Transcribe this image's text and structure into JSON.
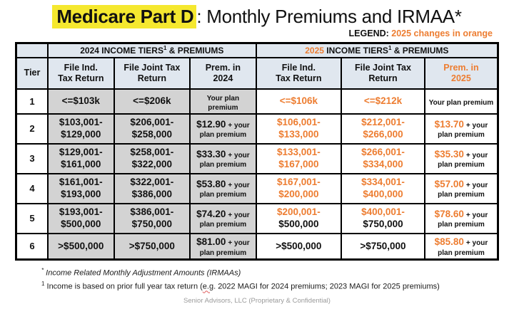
{
  "page": {
    "title": {
      "highlight": "Medicare Part D",
      "rest": ": Monthly Premiums and IRMAA*"
    },
    "legend": {
      "label": "LEGEND:",
      "text": "2025 changes in orange"
    },
    "footnotes": {
      "fn1_sup": "*",
      "fn1_text": " Income Related Monthly Adjustment Amounts (IRMAAs)",
      "fn2_sup": "1",
      "fn2_pre": " Income is based on prior full year tax return (",
      "fn2_squiggle": "e.g",
      "fn2_post": ". 2022 MAGI for 2024 premiums; 2023 MAGI for 2025 premiums)"
    },
    "footer": "Senior Advisors, LLC (Proprietary & Confidential)"
  },
  "colors": {
    "orange": "#ED7D31",
    "highlight_yellow": "#F5E82F",
    "header_bg": "#E0E7EF",
    "gray_cell": "#D3D3D3"
  },
  "table": {
    "group_2024": {
      "year": "2024",
      "mid": " INCOME TIERS",
      "sup": "1",
      "tail": " & PREMIUMS"
    },
    "group_2025": {
      "year": "2025",
      "mid": " INCOME TIERS",
      "sup": "1",
      "tail": " & PREMIUMS"
    },
    "columns": {
      "tier": "Tier",
      "ind_2024": {
        "line1": "File Ind.",
        "line2": "Tax Return"
      },
      "joint_2024": {
        "line1": "File Joint Tax",
        "line2": "Return"
      },
      "prem_2024": {
        "line1": "Prem. in",
        "line2": "2024"
      },
      "ind_2025": {
        "line1": "File Ind.",
        "line2": "Tax Return"
      },
      "joint_2025": {
        "line1": "File Joint Tax",
        "line2": "Return"
      },
      "prem_2025": {
        "line1": "Prem. in",
        "line2": "2025"
      }
    },
    "rows": [
      {
        "tier": "1",
        "ind_2024": [
          {
            "text": "<=$103k",
            "orange": false
          }
        ],
        "joint_2024": [
          {
            "text": "<=$206k",
            "orange": false
          }
        ],
        "prem_2024": {
          "amount": "",
          "amount_orange": false,
          "tail1": "Your plan",
          "tail2": "premium"
        },
        "ind_2025": [
          {
            "text": "<=$106k",
            "orange": true
          }
        ],
        "joint_2025": [
          {
            "text": "<=$212k",
            "orange": true
          }
        ],
        "prem_2025": {
          "amount": "",
          "amount_orange": false,
          "tail1": "Your plan premium",
          "tail2": ""
        }
      },
      {
        "tier": "2",
        "ind_2024": [
          {
            "text": "$103,001-",
            "orange": false
          },
          {
            "text": "$129,000",
            "orange": false
          }
        ],
        "joint_2024": [
          {
            "text": "$206,001-",
            "orange": false
          },
          {
            "text": "$258,000",
            "orange": false
          }
        ],
        "prem_2024": {
          "amount": "$12.90",
          "amount_orange": false,
          "tail1": "+ your",
          "tail2": "plan premium"
        },
        "ind_2025": [
          {
            "text": "$106,001-",
            "orange": true
          },
          {
            "text": "$133,000",
            "orange": true
          }
        ],
        "joint_2025": [
          {
            "text": "$212,001-",
            "orange": true
          },
          {
            "text": "$266,000",
            "orange": true
          }
        ],
        "prem_2025": {
          "amount": "$13.70",
          "amount_orange": true,
          "tail1": "+ your",
          "tail2": "plan premium"
        }
      },
      {
        "tier": "3",
        "ind_2024": [
          {
            "text": "$129,001-",
            "orange": false
          },
          {
            "text": "$161,000",
            "orange": false
          }
        ],
        "joint_2024": [
          {
            "text": "$258,001-",
            "orange": false
          },
          {
            "text": "$322,000",
            "orange": false
          }
        ],
        "prem_2024": {
          "amount": "$33.30",
          "amount_orange": false,
          "tail1": "+ your",
          "tail2": "plan premium"
        },
        "ind_2025": [
          {
            "text": "$133,001-",
            "orange": true
          },
          {
            "text": "$167,000",
            "orange": true
          }
        ],
        "joint_2025": [
          {
            "text": "$266,001-",
            "orange": true
          },
          {
            "text": "$334,000",
            "orange": true
          }
        ],
        "prem_2025": {
          "amount": "$35.30",
          "amount_orange": true,
          "tail1": "+ your",
          "tail2": "plan premium"
        }
      },
      {
        "tier": "4",
        "ind_2024": [
          {
            "text": "$161,001-",
            "orange": false
          },
          {
            "text": "$193,000",
            "orange": false
          }
        ],
        "joint_2024": [
          {
            "text": "$322,001-",
            "orange": false
          },
          {
            "text": "$386,000",
            "orange": false
          }
        ],
        "prem_2024": {
          "amount": "$53.80",
          "amount_orange": false,
          "tail1": "+ your",
          "tail2": "plan premium"
        },
        "ind_2025": [
          {
            "text": "$167,001-",
            "orange": true
          },
          {
            "text": "$200,000",
            "orange": true
          }
        ],
        "joint_2025": [
          {
            "text": "$334,001-",
            "orange": true
          },
          {
            "text": "$400,000",
            "orange": true
          }
        ],
        "prem_2025": {
          "amount": "$57.00",
          "amount_orange": true,
          "tail1": "+ your",
          "tail2": "plan premium"
        }
      },
      {
        "tier": "5",
        "ind_2024": [
          {
            "text": "$193,001-",
            "orange": false
          },
          {
            "text": "$500,000",
            "orange": false
          }
        ],
        "joint_2024": [
          {
            "text": "$386,001-",
            "orange": false
          },
          {
            "text": "$750,000",
            "orange": false
          }
        ],
        "prem_2024": {
          "amount": "$74.20",
          "amount_orange": false,
          "tail1": "+ your",
          "tail2": "plan premium"
        },
        "ind_2025": [
          {
            "text": "$200,001-",
            "orange": true
          },
          {
            "text": "$500,000",
            "orange": false
          }
        ],
        "joint_2025": [
          {
            "text": "$400,001-",
            "orange": true
          },
          {
            "text": "$750,000",
            "orange": false
          }
        ],
        "prem_2025": {
          "amount": "$78.60",
          "amount_orange": true,
          "tail1": "+ your",
          "tail2": "plan premium"
        }
      },
      {
        "tier": "6",
        "ind_2024": [
          {
            "text": ">$500,000",
            "orange": false
          }
        ],
        "joint_2024": [
          {
            "text": ">$750,000",
            "orange": false
          }
        ],
        "prem_2024": {
          "amount": "$81.00",
          "amount_orange": false,
          "tail1": "+ your",
          "tail2": "plan premium"
        },
        "ind_2025": [
          {
            "text": ">$500,000",
            "orange": false
          }
        ],
        "joint_2025": [
          {
            "text": ">$750,000",
            "orange": false
          }
        ],
        "prem_2025": {
          "amount": "$85.80",
          "amount_orange": true,
          "tail1": "+ your",
          "tail2": "plan premium"
        }
      }
    ]
  }
}
